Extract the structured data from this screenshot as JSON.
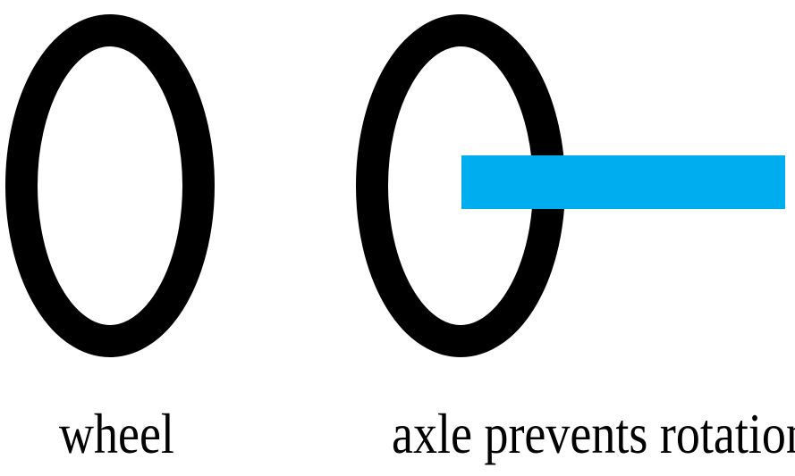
{
  "diagram": {
    "left_panel": {
      "caption": "wheel"
    },
    "right_panel": {
      "caption": "axle prevents rotation"
    },
    "colors": {
      "wheel": "#000000",
      "axle": "#00aeef",
      "background": "#ffffff"
    }
  }
}
